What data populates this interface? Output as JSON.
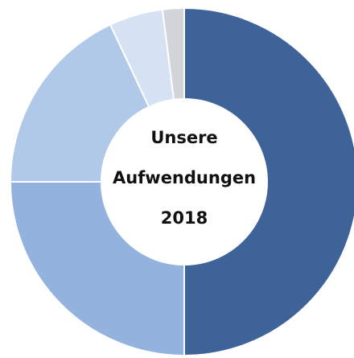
{
  "chart_data": {
    "type": "pie",
    "title": "Unsere Aufwendungen 2018",
    "categories": [
      null,
      null,
      null,
      null,
      null
    ],
    "values": [
      50,
      25,
      18,
      5,
      2
    ],
    "colors": [
      "#3d6399",
      "#93b3de",
      "#b1c9e8",
      "#d5e2f4",
      "#d1d4d8"
    ],
    "hole": true
  }
}
